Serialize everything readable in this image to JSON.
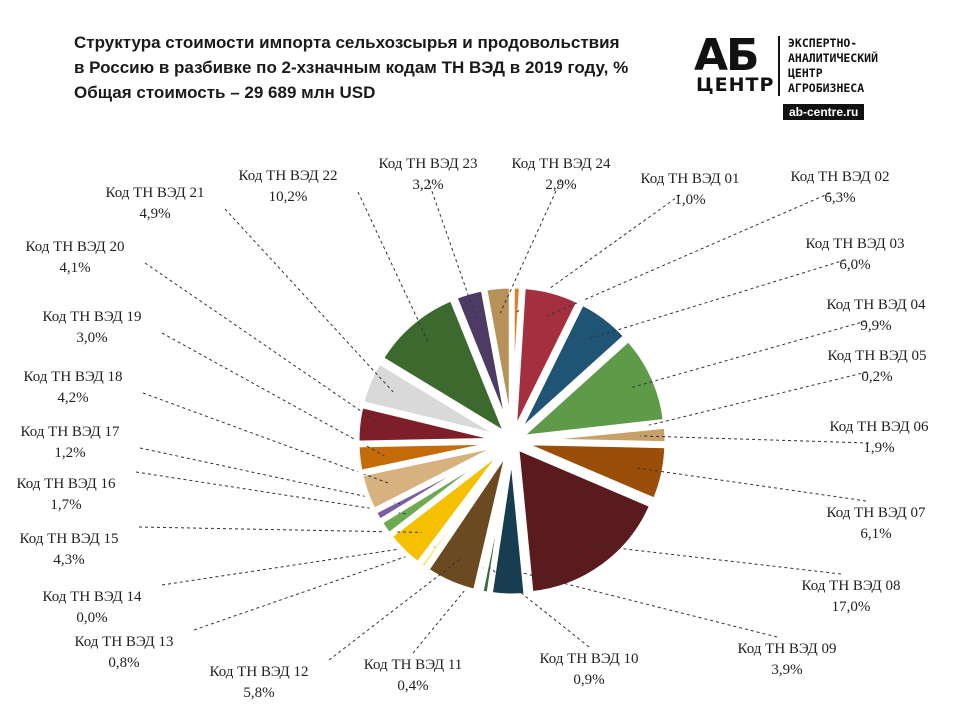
{
  "title": {
    "line1": "Структура стоимости импорта сельхозсырья и продовольствия",
    "line2": "в Россию в разбивке по 2-хзначным кодам ТН ВЭД в 2019 году, %",
    "line3": "Общая стоимость – 29 689 млн USD"
  },
  "logo": {
    "mark": "АБ",
    "mark_sub": "ЦЕНТР",
    "text_lines": [
      "ЭКСПЕРТНО-",
      "АНАЛИТИЧЕСКИЙ",
      "ЦЕНТР",
      "АГРОБИЗНЕСА"
    ],
    "url": "ab-centre.ru"
  },
  "chart_data": {
    "type": "pie",
    "title": "Структура стоимости импорта сельхозсырья и продовольствия в Россию в разбивке по 2-хзначным кодам ТН ВЭД в 2019 году, %",
    "slices": [
      {
        "label": "Код ТН ВЭД 01",
        "value": 1.0,
        "value_label": "1,0%",
        "color": "#D7812A"
      },
      {
        "label": "Код ТН ВЭД 02",
        "value": 6.3,
        "value_label": "6,3%",
        "color": "#A4303F"
      },
      {
        "label": "Код ТН ВЭД 03",
        "value": 6.0,
        "value_label": "6,0%",
        "color": "#1F5475"
      },
      {
        "label": "Код ТН ВЭД 04",
        "value": 9.9,
        "value_label": "9,9%",
        "color": "#5E9A48"
      },
      {
        "label": "Код ТН ВЭД 05",
        "value": 0.2,
        "value_label": "0,2%",
        "color": "#3E7F3A"
      },
      {
        "label": "Код ТН ВЭД 06",
        "value": 1.9,
        "value_label": "1,9%",
        "color": "#C8A06A"
      },
      {
        "label": "Код ТН ВЭД 07",
        "value": 6.1,
        "value_label": "6,1%",
        "color": "#9A4E07"
      },
      {
        "label": "Код ТН ВЭД 08",
        "value": 17.0,
        "value_label": "17,0%",
        "color": "#5B1A1E"
      },
      {
        "label": "Код ТН ВЭД 09",
        "value": 3.9,
        "value_label": "3,9%",
        "color": "#173D50"
      },
      {
        "label": "Код ТН ВЭД 10",
        "value": 0.9,
        "value_label": "0,9%",
        "color": "#3F6B36"
      },
      {
        "label": "Код ТН ВЭД 11",
        "value": 0.4,
        "value_label": "0,4%",
        "color": "#A87A4A"
      },
      {
        "label": "Код ТН ВЭД 12",
        "value": 5.8,
        "value_label": "5,8%",
        "color": "#6B4A22"
      },
      {
        "label": "Код ТН ВЭД 13",
        "value": 0.8,
        "value_label": "0,8%",
        "color": "#F3EC7A"
      },
      {
        "label": "Код ТН ВЭД 14",
        "value": 0.0,
        "value_label": "0,0%",
        "color": "#D9D9D9"
      },
      {
        "label": "Код ТН ВЭД 15",
        "value": 4.3,
        "value_label": "4,3%",
        "color": "#F5C000"
      },
      {
        "label": "Код ТН ВЭД 16",
        "value": 1.7,
        "value_label": "1,7%",
        "color": "#6EAA52"
      },
      {
        "label": "Код ТН ВЭД 17",
        "value": 1.2,
        "value_label": "1,2%",
        "color": "#7B5FA0"
      },
      {
        "label": "Код ТН ВЭД 18",
        "value": 4.2,
        "value_label": "4,2%",
        "color": "#D8B27E"
      },
      {
        "label": "Код ТН ВЭД 19",
        "value": 3.0,
        "value_label": "3,0%",
        "color": "#C46C0A"
      },
      {
        "label": "Код ТН ВЭД 20",
        "value": 4.1,
        "value_label": "4,1%",
        "color": "#7D1E28"
      },
      {
        "label": "Код ТН ВЭД 21",
        "value": 4.9,
        "value_label": "4,9%",
        "color": "#D9D9D9"
      },
      {
        "label": "Код ТН ВЭД 22",
        "value": 10.2,
        "value_label": "10,2%",
        "color": "#3C6A2E"
      },
      {
        "label": "Код ТН ВЭД 23",
        "value": 3.2,
        "value_label": "3,2%",
        "color": "#4D3B66"
      },
      {
        "label": "Код ТН ВЭД 24",
        "value": 2.9,
        "value_label": "2,9%",
        "color": "#B89158"
      }
    ]
  }
}
